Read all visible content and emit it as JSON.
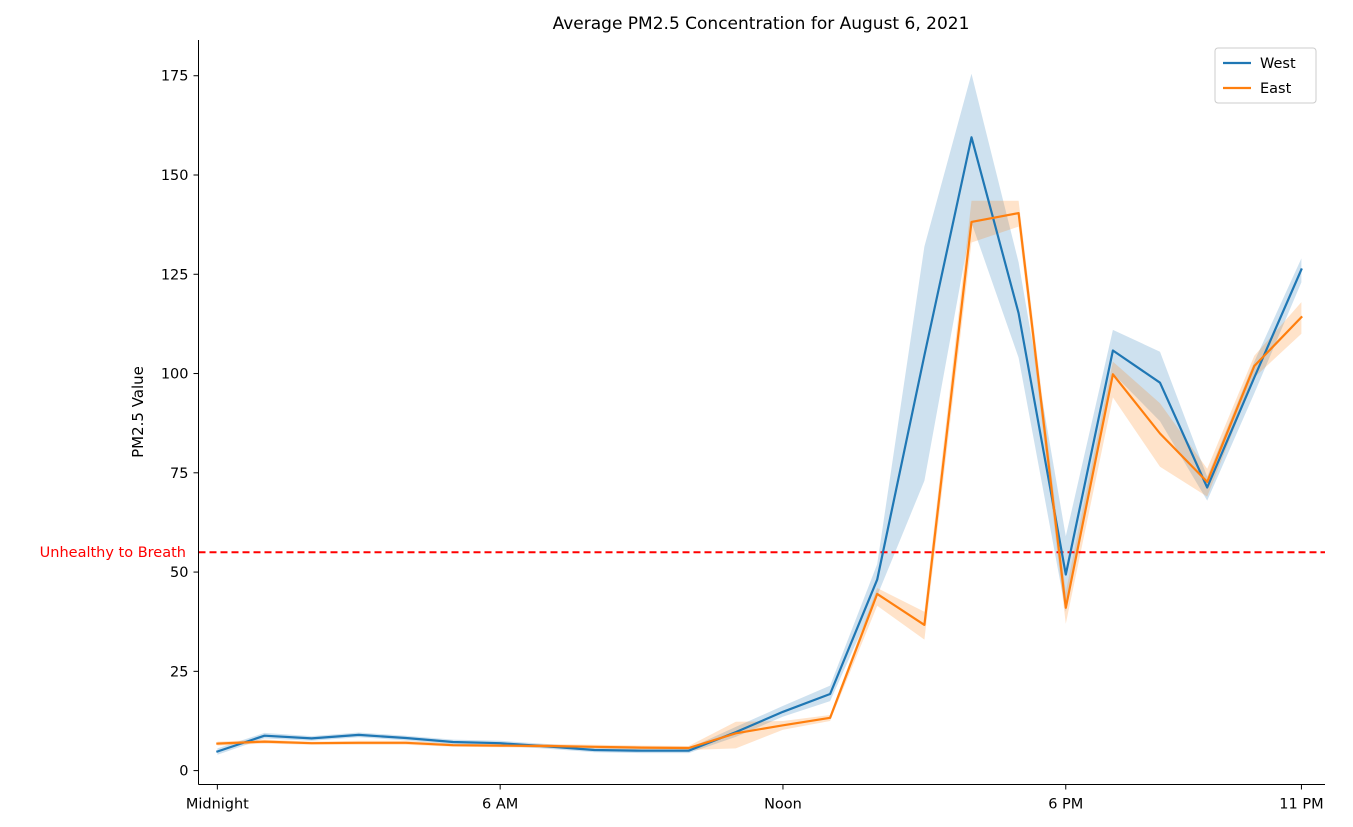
{
  "chart_data": {
    "type": "line",
    "title": "Average PM2.5 Concentration for August 6, 2021",
    "xlabel": "",
    "ylabel": "PM2.5 Value",
    "x": [
      0,
      1,
      2,
      3,
      4,
      5,
      6,
      7,
      8,
      9,
      10,
      11,
      12,
      13,
      14,
      15,
      16,
      17,
      18,
      19,
      20,
      21,
      22,
      23
    ],
    "xlim": [
      -0.4,
      23.5
    ],
    "ylim": [
      -3.5,
      184
    ],
    "x_ticks": [
      {
        "value": 0,
        "label": "Midnight"
      },
      {
        "value": 6,
        "label": "6 AM"
      },
      {
        "value": 12,
        "label": "Noon"
      },
      {
        "value": 18,
        "label": "6 PM"
      },
      {
        "value": 23,
        "label": "11 PM"
      }
    ],
    "y_ticks": [
      0,
      25,
      50,
      75,
      100,
      125,
      150,
      175
    ],
    "grid": false,
    "legend_position": "top-right",
    "series": [
      {
        "name": "West",
        "color": "#1f77b4",
        "values": [
          4.8,
          8.8,
          8.1,
          9.0,
          8.2,
          7.2,
          6.9,
          6.1,
          5.2,
          5.0,
          5.0,
          9.7,
          14.8,
          19.3,
          48.1,
          104.6,
          159.5,
          115.2,
          49.4,
          105.8,
          97.7,
          71.3,
          99.0,
          126.2
        ],
        "lower": [
          4.0,
          8.1,
          7.5,
          8.4,
          7.6,
          6.6,
          6.3,
          5.5,
          4.6,
          4.4,
          4.4,
          8.5,
          13.6,
          17.5,
          44.0,
          73.0,
          138.0,
          104.0,
          40.0,
          100.0,
          88.0,
          68.0,
          95.0,
          123.0
        ],
        "upper": [
          5.6,
          9.5,
          8.7,
          9.6,
          8.8,
          7.8,
          7.5,
          6.7,
          5.8,
          5.6,
          5.6,
          11.0,
          16.3,
          21.4,
          52.0,
          132.0,
          175.5,
          128.0,
          59.0,
          111.0,
          105.5,
          74.0,
          103.0,
          129.0
        ]
      },
      {
        "name": "East",
        "color": "#ff7f0e",
        "values": [
          6.8,
          7.3,
          6.9,
          7.0,
          7.0,
          6.4,
          6.3,
          6.2,
          6.0,
          5.8,
          5.7,
          9.4,
          11.4,
          13.3,
          44.5,
          36.7,
          138.2,
          140.4,
          41.0,
          99.8,
          84.9,
          72.7,
          101.9,
          114.2
        ],
        "lower": [
          6.3,
          6.8,
          6.5,
          6.5,
          6.5,
          6.0,
          5.9,
          5.7,
          5.5,
          5.3,
          5.2,
          5.6,
          10.3,
          12.5,
          41.5,
          33.0,
          133.0,
          137.0,
          37.0,
          94.0,
          76.5,
          69.0,
          99.0,
          110.0
        ],
        "upper": [
          7.3,
          7.8,
          7.3,
          7.5,
          7.5,
          6.8,
          6.7,
          6.7,
          6.5,
          6.3,
          6.2,
          12.3,
          12.5,
          14.0,
          46.0,
          40.0,
          143.5,
          143.5,
          45.0,
          103.0,
          92.5,
          76.0,
          104.5,
          118.0
        ]
      }
    ],
    "annotations": [
      {
        "type": "horizontal-line",
        "y": 55,
        "label": "Unhealthy to Breath",
        "color": "#ff0000",
        "style": "dashed"
      }
    ]
  }
}
